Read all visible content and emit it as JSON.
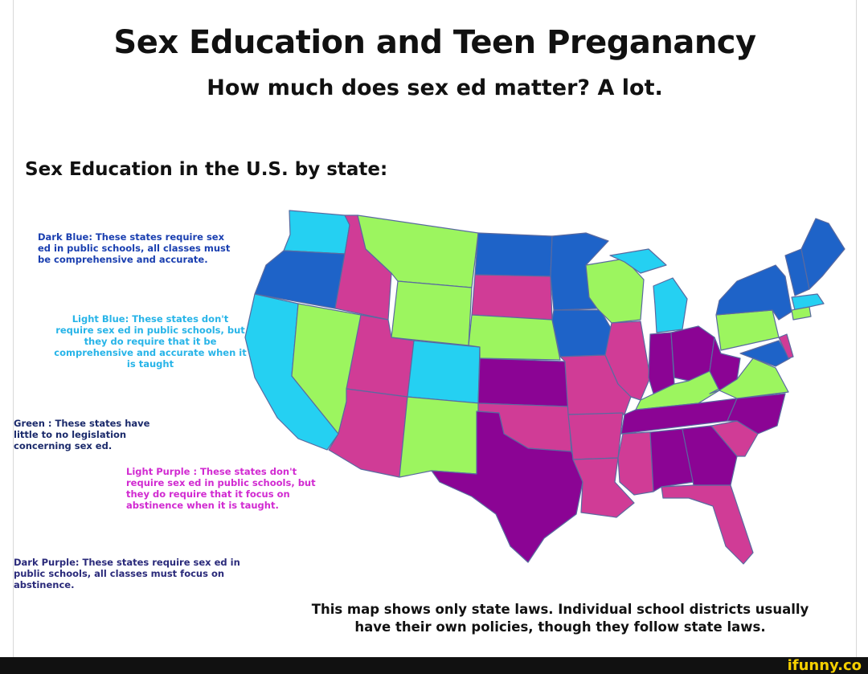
{
  "header": {
    "title": "Sex Education and Teen Preganancy",
    "subtitle": "How much does sex ed matter? A lot."
  },
  "map": {
    "section_label": "Sex Education in the U.S. by state:",
    "colors": {
      "dark_blue": "#1e63c8",
      "light_blue": "#25d0f2",
      "green": "#9cf55f",
      "light_purple": "#d03c96",
      "dark_purple": "#8b0494"
    },
    "legend": {
      "dark_blue": "Dark Blue: These states require sex ed in public schools, all classes must be comprehensive and accurate.",
      "light_blue": "Light Blue: These states don't require sex ed in public schools, but they do require that it be comprehensive and accurate when it is taught",
      "green": "Green : These states have little to no legislation concerning sex ed.",
      "light_purple": "Light Purple : These states don't require sex ed in public schools, but they do require that it focus on abstinence when it is taught.",
      "dark_purple": "Dark Purple: These states require sex ed in public schools, all classes must focus on abstinence."
    },
    "note": "This map shows only state laws. Individual school districts usually have their own policies, though they follow state laws."
  },
  "watermark": "ifunny.co"
}
